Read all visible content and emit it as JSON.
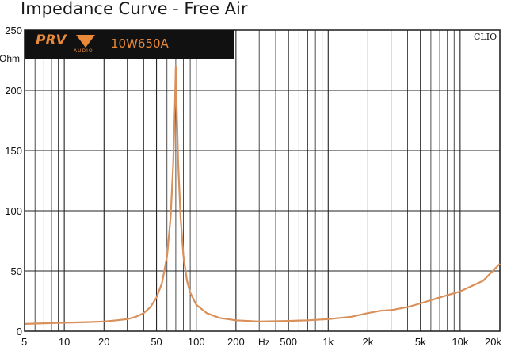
{
  "chart_data": {
    "type": "line",
    "title": "Impedance Curve - Free Air",
    "ylabel": "Ohm",
    "xlabel": "Hz",
    "x_scale": "log",
    "xlim": [
      5,
      20000
    ],
    "ylim": [
      0,
      250
    ],
    "grid": true,
    "y_ticks": [
      0,
      50,
      100,
      150,
      200,
      250
    ],
    "x_ticks": [
      5,
      10,
      20,
      50,
      100,
      200,
      500,
      1000,
      2000,
      5000,
      10000,
      20000
    ],
    "x_tick_labels": [
      "5",
      "10",
      "20",
      "50",
      "100",
      "200",
      "500",
      "1k",
      "2k",
      "5k",
      "10k",
      "20k"
    ],
    "series": [
      {
        "color": "#d9905a",
        "points": [
          [
            5,
            6
          ],
          [
            7,
            6.5
          ],
          [
            10,
            7
          ],
          [
            15,
            7.5
          ],
          [
            20,
            8
          ],
          [
            25,
            9
          ],
          [
            30,
            10
          ],
          [
            35,
            12
          ],
          [
            40,
            15
          ],
          [
            45,
            20
          ],
          [
            50,
            28
          ],
          [
            55,
            40
          ],
          [
            60,
            62
          ],
          [
            64,
            95
          ],
          [
            67,
            140
          ],
          [
            69,
            190
          ],
          [
            70,
            220
          ],
          [
            71,
            190
          ],
          [
            73,
            140
          ],
          [
            76,
            95
          ],
          [
            80,
            62
          ],
          [
            85,
            42
          ],
          [
            90,
            32
          ],
          [
            100,
            22
          ],
          [
            120,
            15
          ],
          [
            150,
            11
          ],
          [
            200,
            9
          ],
          [
            300,
            8
          ],
          [
            500,
            8.5
          ],
          [
            700,
            9
          ],
          [
            1000,
            10
          ],
          [
            1500,
            12
          ],
          [
            2000,
            15
          ],
          [
            2500,
            17
          ],
          [
            3000,
            17.5
          ],
          [
            4000,
            20
          ],
          [
            5000,
            23
          ],
          [
            7000,
            28
          ],
          [
            10000,
            33
          ],
          [
            15000,
            42
          ],
          [
            20000,
            56
          ]
        ]
      }
    ]
  },
  "logo": {
    "brand": "PRV",
    "brand_sub": "AUDIO",
    "model": "10W650A"
  },
  "watermark": "CLIO",
  "colors": {
    "curve": "#d9905a",
    "logo_bg": "#111111",
    "accent": "#e88a3a",
    "grid": "#222222"
  }
}
